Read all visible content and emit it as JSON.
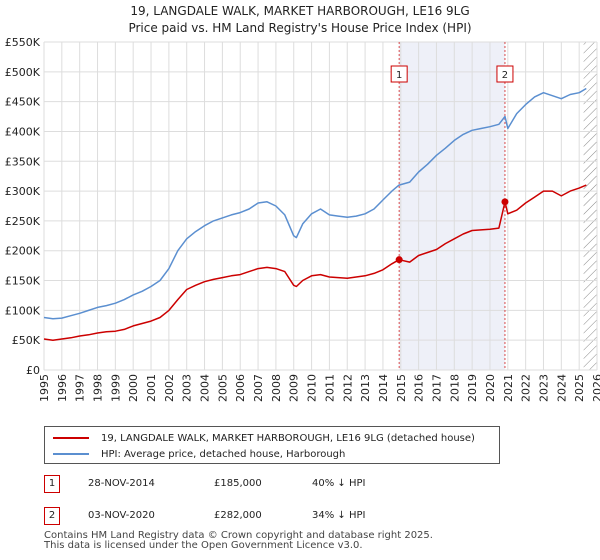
{
  "title_line1": "19, LANGDALE WALK, MARKET HARBOROUGH, LE16 9LG",
  "title_line2": "Price paid vs. HM Land Registry's House Price Index (HPI)",
  "chart_data": {
    "type": "line",
    "title": "19, LANGDALE WALK, MARKET HARBOROUGH, LE16 9LG - Price paid vs. HM Land Registry's House Price Index (HPI)",
    "xlabel": "",
    "ylabel": "",
    "xlim": [
      1995,
      2026
    ],
    "ylim": [
      0,
      550000
    ],
    "grid": true,
    "x_ticks": [
      1995,
      1996,
      1997,
      1998,
      1999,
      2000,
      2001,
      2002,
      2003,
      2004,
      2005,
      2006,
      2007,
      2008,
      2009,
      2010,
      2011,
      2012,
      2013,
      2014,
      2015,
      2016,
      2017,
      2018,
      2019,
      2020,
      2021,
      2022,
      2023,
      2024,
      2025,
      2026
    ],
    "y_ticks": [
      0,
      50000,
      100000,
      150000,
      200000,
      250000,
      300000,
      350000,
      400000,
      450000,
      500000,
      550000
    ],
    "y_tick_labels": [
      "£0",
      "£50K",
      "£100K",
      "£150K",
      "£200K",
      "£250K",
      "£300K",
      "£350K",
      "£400K",
      "£450K",
      "£500K",
      "£550K"
    ],
    "series": [
      {
        "name": "19, LANGDALE WALK, MARKET HARBOROUGH, LE16 9LG (detached house)",
        "color": "#cc0000",
        "x": [
          1995.0,
          1995.5,
          1996.0,
          1996.5,
          1997.0,
          1997.5,
          1998.0,
          1998.5,
          1999.0,
          1999.5,
          2000.0,
          2000.5,
          2001.0,
          2001.5,
          2002.0,
          2002.5,
          2003.0,
          2003.5,
          2004.0,
          2004.5,
          2005.0,
          2005.5,
          2006.0,
          2006.5,
          2007.0,
          2007.5,
          2008.0,
          2008.5,
          2009.0,
          2009.15,
          2009.5,
          2010.0,
          2010.5,
          2011.0,
          2011.5,
          2012.0,
          2012.5,
          2013.0,
          2013.5,
          2014.0,
          2014.5,
          2014.9,
          2015.5,
          2016.0,
          2016.5,
          2017.0,
          2017.5,
          2018.0,
          2018.5,
          2019.0,
          2019.5,
          2020.0,
          2020.5,
          2020.84,
          2021.0,
          2021.5,
          2022.0,
          2022.5,
          2023.0,
          2023.5,
          2024.0,
          2024.5,
          2025.0,
          2025.4
        ],
        "values": [
          52000,
          50000,
          52000,
          54000,
          57000,
          59000,
          62000,
          64000,
          65000,
          68000,
          74000,
          78000,
          82000,
          88000,
          100000,
          118000,
          135000,
          142000,
          148000,
          152000,
          155000,
          158000,
          160000,
          165000,
          170000,
          172000,
          170000,
          165000,
          142000,
          140000,
          150000,
          158000,
          160000,
          156000,
          155000,
          154000,
          156000,
          158000,
          162000,
          168000,
          178000,
          185000,
          181000,
          192000,
          197000,
          202000,
          212000,
          220000,
          228000,
          234000,
          235000,
          236000,
          238000,
          282000,
          262000,
          268000,
          280000,
          290000,
          300000,
          300000,
          292000,
          300000,
          305000,
          310000
        ]
      },
      {
        "name": "HPI: Average price, detached house, Harborough",
        "color": "#5b8fd0",
        "x": [
          1995.0,
          1995.5,
          1996.0,
          1996.5,
          1997.0,
          1997.5,
          1998.0,
          1998.5,
          1999.0,
          1999.5,
          2000.0,
          2000.5,
          2001.0,
          2001.5,
          2002.0,
          2002.5,
          2003.0,
          2003.5,
          2004.0,
          2004.5,
          2005.0,
          2005.5,
          2006.0,
          2006.5,
          2007.0,
          2007.5,
          2008.0,
          2008.5,
          2009.0,
          2009.15,
          2009.5,
          2010.0,
          2010.5,
          2011.0,
          2011.5,
          2012.0,
          2012.5,
          2013.0,
          2013.5,
          2014.0,
          2014.5,
          2014.9,
          2015.5,
          2016.0,
          2016.5,
          2017.0,
          2017.5,
          2018.0,
          2018.5,
          2019.0,
          2019.5,
          2020.0,
          2020.5,
          2020.84,
          2021.0,
          2021.5,
          2022.0,
          2022.5,
          2023.0,
          2023.5,
          2024.0,
          2024.5,
          2025.0,
          2025.4
        ],
        "values": [
          88000,
          86000,
          87000,
          91000,
          95000,
          100000,
          105000,
          108000,
          112000,
          118000,
          126000,
          132000,
          140000,
          150000,
          170000,
          200000,
          220000,
          232000,
          242000,
          250000,
          255000,
          260000,
          264000,
          270000,
          280000,
          282000,
          275000,
          260000,
          225000,
          222000,
          245000,
          262000,
          270000,
          260000,
          258000,
          256000,
          258000,
          262000,
          270000,
          285000,
          300000,
          310000,
          315000,
          332000,
          345000,
          360000,
          372000,
          385000,
          395000,
          402000,
          405000,
          408000,
          412000,
          425000,
          405000,
          430000,
          445000,
          458000,
          465000,
          460000,
          455000,
          462000,
          465000,
          472000
        ]
      }
    ],
    "annotations": [
      {
        "label": "1",
        "x": 2014.91,
        "value": 185000
      },
      {
        "label": "2",
        "x": 2020.84,
        "value": 282000
      }
    ]
  },
  "legend": {
    "property_label": "19, LANGDALE WALK, MARKET HARBOROUGH, LE16 9LG (detached house)",
    "hpi_label": "HPI: Average price, detached house, Harborough"
  },
  "transactions": [
    {
      "num": "1",
      "date": "28-NOV-2014",
      "price": "£185,000",
      "hpi": "40% ↓ HPI"
    },
    {
      "num": "2",
      "date": "03-NOV-2020",
      "price": "£282,000",
      "hpi": "34% ↓ HPI"
    }
  ],
  "colors": {
    "property": "#cc0000",
    "hpi": "#5b8fd0",
    "grid": "#dddddd",
    "shade": "#eef0f8",
    "hatch": "#888888"
  },
  "footer_line1": "Contains HM Land Registry data © Crown copyright and database right 2025.",
  "footer_line2": "This data is licensed under the Open Government Licence v3.0."
}
